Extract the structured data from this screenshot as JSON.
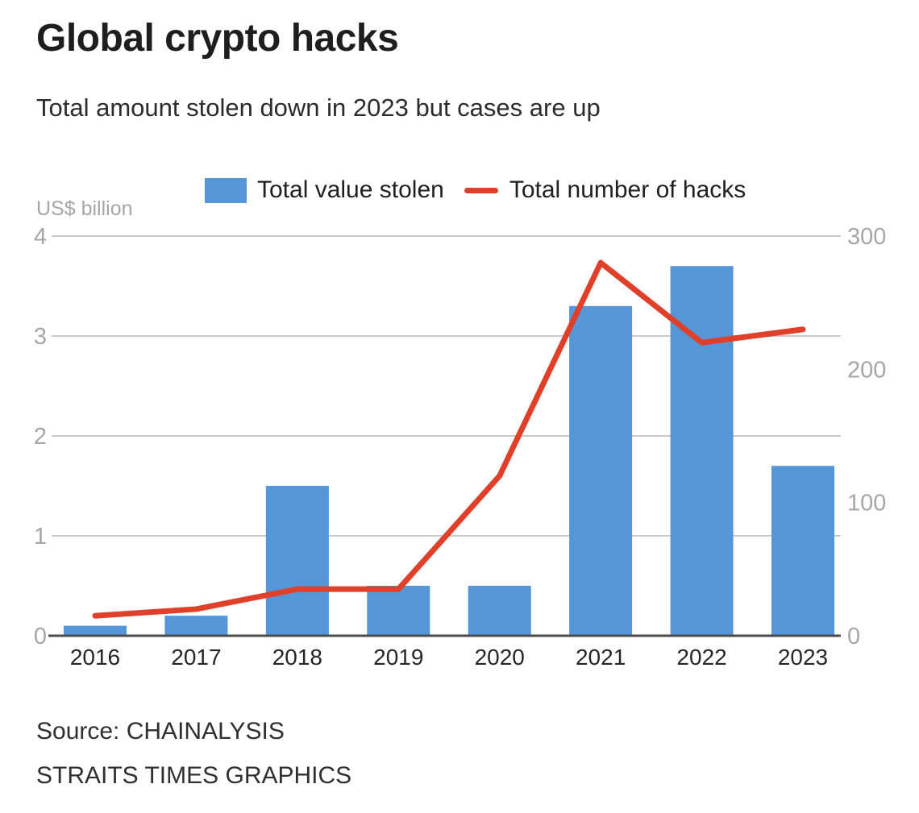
{
  "chart_data": {
    "type": "bar+line",
    "title": "Global crypto hacks",
    "subtitle": "Total amount stolen down in 2023 but cases are up",
    "categories": [
      "2016",
      "2017",
      "2018",
      "2019",
      "2020",
      "2021",
      "2022",
      "2023"
    ],
    "series": [
      {
        "name": "Total value stolen",
        "type": "bar",
        "axis": "left",
        "color": "#5596d8",
        "values": [
          0.1,
          0.2,
          1.5,
          0.5,
          0.5,
          3.3,
          3.7,
          1.7
        ]
      },
      {
        "name": "Total number of hacks",
        "type": "line",
        "axis": "right",
        "color": "#e0402a",
        "values": [
          15,
          20,
          35,
          35,
          120,
          280,
          220,
          230
        ]
      }
    ],
    "left_axis": {
      "label": "US$ billion",
      "range": [
        0,
        4
      ],
      "ticks": [
        0,
        1,
        2,
        3,
        4
      ]
    },
    "right_axis": {
      "range": [
        0,
        300
      ],
      "ticks": [
        0,
        100,
        200,
        300
      ]
    },
    "grid": true,
    "legend_position": "top"
  },
  "footer": {
    "source": "Source: CHAINALYSIS",
    "credit": "STRAITS TIMES GRAPHICS"
  }
}
